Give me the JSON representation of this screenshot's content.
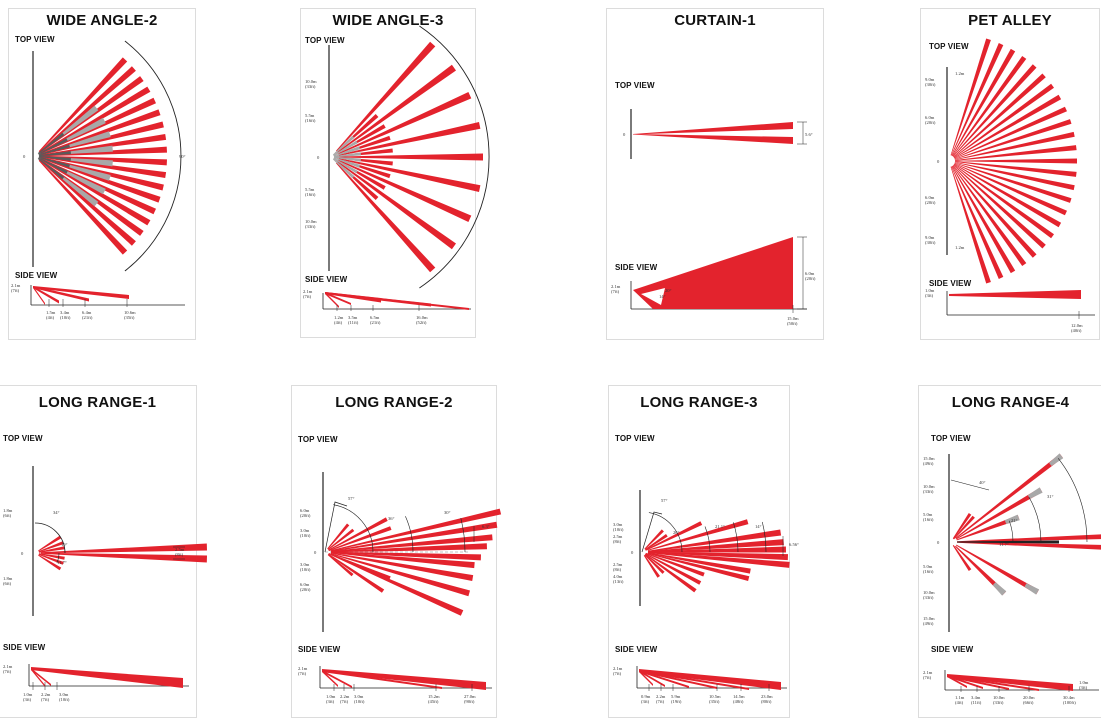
{
  "top_view_label": "TOP VIEW",
  "side_view_label": "SIDE VIEW",
  "panels": [
    {
      "title": "WIDE ANGLE-2",
      "top_center": "0",
      "top_angle": "90°",
      "side_height": [
        "2.1m",
        "(7ft)"
      ],
      "side_ticks": [
        [
          "1.5m",
          "(4ft)"
        ],
        [
          "3.4m",
          "(10ft)"
        ],
        [
          "6.4m",
          "(21ft)"
        ],
        [
          "10.6m",
          "(35ft)"
        ]
      ]
    },
    {
      "title": "WIDE ANGLE-3",
      "top_center": "0",
      "top_y": [
        [
          "10.0m",
          "(33ft)"
        ],
        [
          "5.5m",
          "(16ft)"
        ],
        [
          "5.5m",
          "(16ft)"
        ],
        [
          "10.0m",
          "(33ft)"
        ]
      ],
      "side_height": [
        "2.1m",
        "(7ft)"
      ],
      "side_ticks": [
        [
          "1.2m",
          "(4ft)"
        ],
        [
          "3.5m",
          "(11ft)"
        ],
        [
          "6.5m",
          "(21ft)"
        ],
        [
          "16.0m",
          "(52ft)"
        ]
      ]
    },
    {
      "title": "CURTAIN-1",
      "top_center": "0",
      "top_angle": "5.6°",
      "side_height": [
        "2.1m",
        "(7ft)"
      ],
      "side_right": [
        "6.0m",
        "(20ft)"
      ],
      "side_angles": [
        "20°",
        "14°"
      ],
      "side_ticks": [
        [
          "15.0m",
          "(50ft)"
        ]
      ]
    },
    {
      "title": "PET ALLEY",
      "top_center": "0",
      "top_y": [
        [
          "9.0m",
          "(30ft)"
        ],
        [
          "6.0m",
          "(20ft)"
        ],
        [
          "6.0m",
          "(20ft)"
        ],
        [
          "9.0m",
          "(30ft)"
        ]
      ],
      "top_marks": [
        "1.2m",
        "1.2m"
      ],
      "side_height": [
        "1.0m",
        "(3ft)"
      ],
      "side_ticks": [
        [
          "12.0m",
          "(40ft)"
        ]
      ]
    },
    {
      "title": "LONG RANGE-1",
      "top_center": "0",
      "top_y": [
        [
          "1.8m",
          "(6ft)"
        ],
        [
          "1.8m",
          "(6ft)"
        ]
      ],
      "top_angles": [
        "34°",
        "19°",
        "11.7°"
      ],
      "top_right": [
        "2.5m",
        "(8ft)"
      ],
      "side_height": [
        "2.1m",
        "(7ft)"
      ],
      "side_ticks": [
        [
          "1.0m",
          "(3ft)"
        ],
        [
          "2.2m",
          "(7ft)"
        ],
        [
          "3.0m",
          "(10ft)"
        ]
      ]
    },
    {
      "title": "LONG RANGE-2",
      "top_center": "0",
      "top_y": [
        [
          "6.0m",
          "(20ft)"
        ],
        [
          "3.0m",
          "(10ft)"
        ],
        [
          "3.0m",
          "(10ft)"
        ],
        [
          "6.0m",
          "(20ft)"
        ]
      ],
      "top_angles": [
        "57°",
        "36°",
        "30°",
        "6.3°"
      ],
      "side_height": [
        "2.1m",
        "(7ft)"
      ],
      "side_ticks": [
        [
          "1.0m",
          "(3ft)"
        ],
        [
          "2.2m",
          "(7ft)"
        ],
        [
          "3.0m",
          "(10ft)"
        ],
        [
          "15.2m",
          "(45ft)"
        ],
        [
          "27.0m",
          "(90ft)"
        ]
      ]
    },
    {
      "title": "LONG RANGE-3",
      "top_center": "0",
      "top_y": [
        [
          "3.0m",
          "(10ft)"
        ],
        [
          "2.5m",
          "(8ft)"
        ],
        [
          "2.5m",
          "(8ft)"
        ],
        [
          "4.0m",
          "(13ft)"
        ]
      ],
      "top_angles": [
        "57°",
        "26°",
        "21.1°",
        "14°",
        "6.56°"
      ],
      "side_height": [
        "2.1m",
        "(7ft)"
      ],
      "side_ticks": [
        [
          "0.9m",
          "(3ft)"
        ],
        [
          "2.2m",
          "(7ft)"
        ],
        [
          "5.9m",
          "(19ft)"
        ],
        [
          "10.5m",
          "(35ft)"
        ],
        [
          "14.5m",
          "(48ft)"
        ],
        [
          "23.0m",
          "(80ft)"
        ]
      ]
    },
    {
      "title": "LONG RANGE-4",
      "top_center": "0",
      "top_y": [
        [
          "15.0m",
          "(49ft)"
        ],
        [
          "10.0m",
          "(33ft)"
        ],
        [
          "5.0m",
          "(16ft)"
        ],
        [
          "5.0m",
          "(16ft)"
        ],
        [
          "10.0m",
          "(33ft)"
        ],
        [
          "15.0m",
          "(49ft)"
        ]
      ],
      "top_angles": [
        "40°",
        "31°",
        "21°",
        "11.7°"
      ],
      "side_height": [
        "2.1m",
        "(7ft)"
      ],
      "side_right": [
        "1.0m",
        "(3ft)"
      ],
      "side_ticks": [
        [
          "1.1m",
          "(4ft)"
        ],
        [
          "3.4m",
          "(11ft)"
        ],
        [
          "10.0m",
          "(33ft)"
        ],
        [
          "20.0m",
          "(66ft)"
        ],
        [
          "30.4m",
          "(100ft)"
        ]
      ]
    }
  ]
}
